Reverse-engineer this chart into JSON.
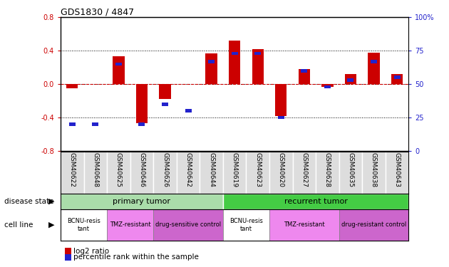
{
  "title": "GDS1830 / 4847",
  "samples": [
    "GSM40622",
    "GSM40648",
    "GSM40625",
    "GSM40646",
    "GSM40626",
    "GSM40642",
    "GSM40644",
    "GSM40619",
    "GSM40623",
    "GSM40620",
    "GSM40627",
    "GSM40628",
    "GSM40635",
    "GSM40638",
    "GSM40643"
  ],
  "log2_ratio": [
    -0.05,
    0.0,
    0.33,
    -0.47,
    -0.18,
    0.0,
    0.37,
    0.52,
    0.42,
    -0.38,
    0.18,
    -0.03,
    0.12,
    0.38,
    0.12
  ],
  "percentile_rank": [
    20,
    20,
    65,
    20,
    35,
    30,
    67,
    73,
    73,
    25,
    60,
    48,
    53,
    67,
    55
  ],
  "ylim": [
    -0.8,
    0.8
  ],
  "yticks_left": [
    -0.8,
    -0.4,
    0.0,
    0.4,
    0.8
  ],
  "yticks_right": [
    0,
    25,
    50,
    75,
    100
  ],
  "bar_color_red": "#cc0000",
  "bar_color_blue": "#2222cc",
  "red_dashed_color": "#cc0000",
  "disease_state_groups": [
    {
      "label": "primary tumor",
      "start": 0,
      "end": 6,
      "color": "#aaddaa"
    },
    {
      "label": "recurrent tumor",
      "start": 7,
      "end": 14,
      "color": "#44cc44"
    }
  ],
  "cell_line_groups": [
    {
      "label": "BCNU-resis\ntant",
      "start": 0,
      "end": 1,
      "color": "#ffffff"
    },
    {
      "label": "TMZ-resistant",
      "start": 2,
      "end": 3,
      "color": "#ee88ee"
    },
    {
      "label": "drug-sensitive control",
      "start": 4,
      "end": 6,
      "color": "#cc66cc"
    },
    {
      "label": "BCNU-resis\ntant",
      "start": 7,
      "end": 8,
      "color": "#ffffff"
    },
    {
      "label": "TMZ-resistant",
      "start": 9,
      "end": 11,
      "color": "#ee88ee"
    },
    {
      "label": "drug-resistant control",
      "start": 12,
      "end": 14,
      "color": "#cc66cc"
    }
  ],
  "legend_items": [
    {
      "label": "log2 ratio",
      "color": "#cc0000"
    },
    {
      "label": "percentile rank within the sample",
      "color": "#2222cc"
    }
  ],
  "bg_color": "#ffffff",
  "axis_label_color_left": "#cc0000",
  "axis_label_color_right": "#2222cc"
}
